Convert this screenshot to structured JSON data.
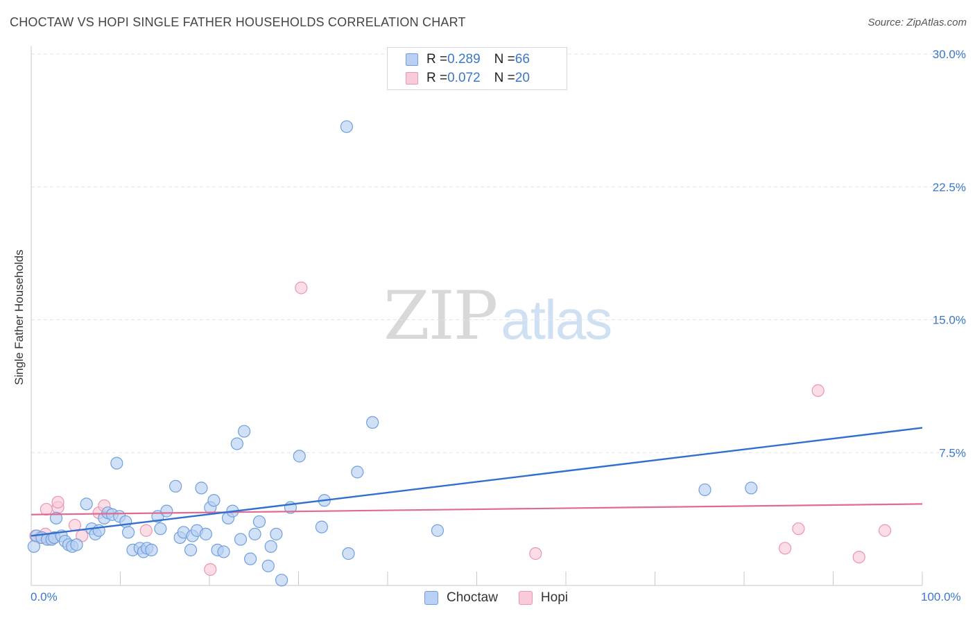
{
  "title": "CHOCTAW VS HOPI SINGLE FATHER HOUSEHOLDS CORRELATION CHART",
  "source": "Source: ZipAtlas.com",
  "watermark": {
    "zip": "ZIP",
    "atlas": "atlas"
  },
  "legend": {
    "choctaw": {
      "r_label": "R = ",
      "r_value": "0.289",
      "n_label": "N = ",
      "n_value": "66"
    },
    "hopi": {
      "r_label": "R = ",
      "r_value": "0.072",
      "n_label": "N = ",
      "n_value": "20"
    }
  },
  "colors": {
    "choctaw_fill": "#b7d0f3",
    "choctaw_stroke": "#6f9fde",
    "choctaw_line": "#2f6fcf",
    "hopi_fill": "#f9cbd9",
    "hopi_stroke": "#ec94b1",
    "hopi_line": "#e06a90",
    "tick_label": "#3a78c9",
    "grid": "#e3e3e3"
  },
  "chart_data": {
    "type": "scatter",
    "title": "CHOCTAW VS HOPI SINGLE FATHER HOUSEHOLDS CORRELATION CHART",
    "xlabel": "",
    "ylabel": "Single Father Households",
    "xlim": [
      0,
      100
    ],
    "ylim": [
      0,
      30
    ],
    "x_tick_labels": [
      "0.0%",
      "100.0%"
    ],
    "y_ticks": [
      7.5,
      15.0,
      22.5,
      30.0
    ],
    "y_tick_labels": [
      "7.5%",
      "15.0%",
      "22.5%",
      "30.0%"
    ],
    "grid": true,
    "legend_position": "top-center",
    "series": [
      {
        "name": "Choctaw",
        "r": 0.289,
        "n": 66,
        "trend": [
          [
            0,
            2.8
          ],
          [
            100,
            8.9
          ]
        ],
        "points": [
          [
            0.3,
            2.2
          ],
          [
            0.6,
            2.8
          ],
          [
            1.2,
            2.7
          ],
          [
            1.8,
            2.6
          ],
          [
            2.3,
            2.6
          ],
          [
            2.6,
            2.7
          ],
          [
            2.8,
            3.8
          ],
          [
            3.4,
            2.8
          ],
          [
            3.8,
            2.5
          ],
          [
            4.2,
            2.3
          ],
          [
            4.6,
            2.2
          ],
          [
            5.1,
            2.3
          ],
          [
            6.2,
            4.6
          ],
          [
            6.8,
            3.2
          ],
          [
            7.2,
            2.9
          ],
          [
            7.6,
            3.1
          ],
          [
            8.2,
            3.8
          ],
          [
            8.6,
            4.1
          ],
          [
            9.1,
            4.0
          ],
          [
            9.6,
            6.9
          ],
          [
            9.9,
            3.9
          ],
          [
            10.6,
            3.6
          ],
          [
            10.9,
            3.0
          ],
          [
            11.4,
            2.0
          ],
          [
            12.2,
            2.1
          ],
          [
            12.6,
            1.9
          ],
          [
            13.0,
            2.1
          ],
          [
            13.5,
            2.0
          ],
          [
            14.2,
            3.9
          ],
          [
            14.5,
            3.2
          ],
          [
            15.2,
            4.2
          ],
          [
            16.2,
            5.6
          ],
          [
            16.7,
            2.7
          ],
          [
            17.1,
            3.0
          ],
          [
            17.9,
            2.0
          ],
          [
            18.1,
            2.8
          ],
          [
            18.6,
            3.1
          ],
          [
            19.1,
            5.5
          ],
          [
            19.6,
            2.9
          ],
          [
            20.1,
            4.4
          ],
          [
            20.5,
            4.8
          ],
          [
            20.9,
            2.0
          ],
          [
            21.6,
            1.9
          ],
          [
            22.1,
            3.8
          ],
          [
            22.6,
            4.2
          ],
          [
            23.1,
            8.0
          ],
          [
            23.5,
            2.6
          ],
          [
            23.9,
            8.7
          ],
          [
            24.6,
            1.5
          ],
          [
            25.1,
            2.9
          ],
          [
            25.6,
            3.6
          ],
          [
            26.6,
            1.1
          ],
          [
            26.9,
            2.2
          ],
          [
            27.5,
            2.9
          ],
          [
            28.1,
            0.3
          ],
          [
            29.1,
            4.4
          ],
          [
            30.1,
            7.3
          ],
          [
            32.6,
            3.3
          ],
          [
            32.9,
            4.8
          ],
          [
            35.4,
            25.9
          ],
          [
            35.6,
            1.8
          ],
          [
            36.6,
            6.4
          ],
          [
            38.3,
            9.2
          ],
          [
            45.6,
            3.1
          ],
          [
            75.6,
            5.4
          ],
          [
            80.8,
            5.5
          ]
        ]
      },
      {
        "name": "Hopi",
        "r": 0.072,
        "n": 20,
        "trend": [
          [
            0,
            4.0
          ],
          [
            100,
            4.6
          ]
        ],
        "points": [
          [
            0.5,
            2.8
          ],
          [
            1.0,
            2.7
          ],
          [
            1.6,
            2.9
          ],
          [
            2.1,
            2.6
          ],
          [
            1.7,
            4.3
          ],
          [
            3.0,
            4.4
          ],
          [
            3.0,
            4.7
          ],
          [
            4.9,
            3.4
          ],
          [
            5.7,
            2.8
          ],
          [
            7.6,
            4.1
          ],
          [
            8.2,
            4.5
          ],
          [
            12.9,
            3.1
          ],
          [
            20.1,
            0.9
          ],
          [
            30.3,
            16.8
          ],
          [
            56.6,
            1.8
          ],
          [
            84.6,
            2.1
          ],
          [
            86.1,
            3.2
          ],
          [
            88.3,
            11.0
          ],
          [
            92.9,
            1.6
          ],
          [
            95.8,
            3.1
          ]
        ]
      }
    ]
  },
  "bottom_legend": {
    "choctaw": "Choctaw",
    "hopi": "Hopi"
  }
}
